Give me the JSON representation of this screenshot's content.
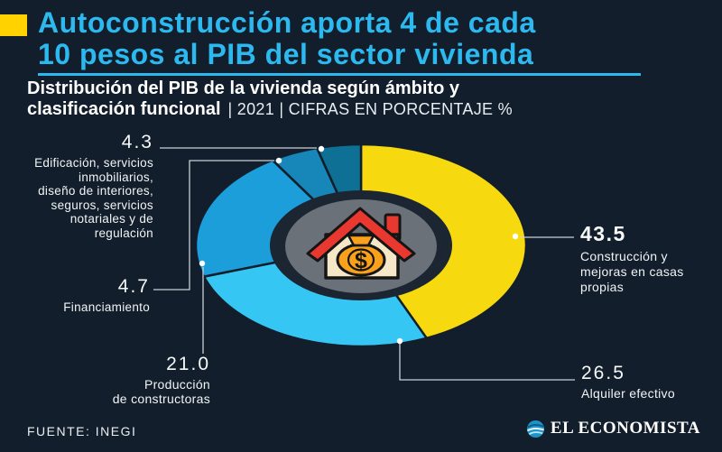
{
  "theme": {
    "background": "#121E2B",
    "accent_cyan": "#2CB9F0",
    "accent_yellow": "#FFD200",
    "hole_color": "#1C2633",
    "center_disc_color": "#6B7178",
    "leader_line_color": "#C9D1D7"
  },
  "header": {
    "title_line1": "Autoconstrucción aporta 4 de cada",
    "title_line2": "10 pesos al PIB del sector vivienda",
    "subtitle_line1": "Distribución del PIB de la vivienda según ámbito y",
    "subtitle_line2_bold": "clasificación funcional",
    "subtitle_line2_meta": "| 2021 | CIFRAS EN PORCENTAJE %"
  },
  "chart_data": {
    "type": "pie",
    "variant": "donut",
    "title": "Distribución del PIB de la vivienda según ámbito y clasificación funcional",
    "year": "2021",
    "units": "cifras en porcentaje %",
    "start_angle_deg": 0,
    "direction": "clockwise",
    "center_icon": "house-with-money-bag",
    "segments": [
      {
        "display": "43.5",
        "value": 43.5,
        "color": "#F7D90F",
        "label": "Construcción y mejoras en casas propias",
        "label_lines": "Construcción y\nmejoras en casas\npropias"
      },
      {
        "display": "26.5",
        "value": 26.5,
        "color": "#36C6F4",
        "label": "Alquiler efectivo",
        "label_lines": "Alquiler efectivo"
      },
      {
        "display": "21.0",
        "value": 21.0,
        "color": "#1C9EDA",
        "label": "Producción de constructoras",
        "label_lines": "Producción\nde constructoras"
      },
      {
        "display": "4.7",
        "value": 4.7,
        "color": "#1786B9",
        "label": "Financiamiento",
        "label_lines": "Financiamiento"
      },
      {
        "display": "4.3",
        "value": 4.3,
        "color": "#0D7094",
        "label": "Edificación, servicios inmobiliarios, diseño de interiores, seguros, servicios notariales y de regulación",
        "label_lines": "Edificación, servicios\ninmobiliarios,\ndiseño de interiores,\nseguros, servicios\nnotariales y de\nregulación"
      }
    ]
  },
  "footer": {
    "source": "FUENTE: INEGI",
    "brand": "EL ECONOMISTA"
  },
  "icons": {
    "center": "house-with-money-bag",
    "brand_mark": "el-economista-globe"
  }
}
